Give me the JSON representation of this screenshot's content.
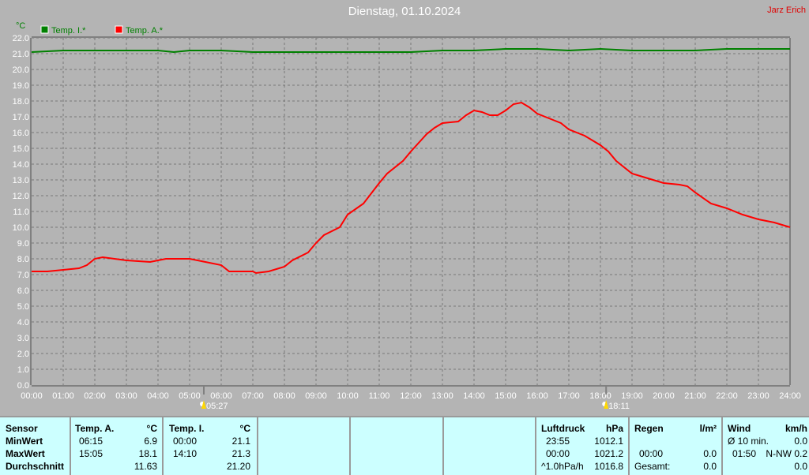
{
  "header": {
    "title": "Dienstag, 01.10.2024",
    "author": "Jarz Erich"
  },
  "chart_data": {
    "type": "line",
    "ylabel": "°C",
    "ylim": [
      0,
      22
    ],
    "xlim": [
      0,
      24
    ],
    "grid": true,
    "legend": "top-left",
    "yticks": [
      "0.0",
      "1.0",
      "2.0",
      "3.0",
      "4.0",
      "5.0",
      "6.0",
      "7.0",
      "8.0",
      "9.0",
      "10.0",
      "11.0",
      "12.0",
      "13.0",
      "14.0",
      "15.0",
      "16.0",
      "17.0",
      "18.0",
      "19.0",
      "20.0",
      "21.0",
      "22.0"
    ],
    "xticks": [
      "00:00",
      "01:00",
      "02:00",
      "03:00",
      "04:00",
      "05:00",
      "06:00",
      "07:00",
      "08:00",
      "09:00",
      "10:00",
      "11:00",
      "12:00",
      "13:00",
      "14:00",
      "15:00",
      "16:00",
      "17:00",
      "18:00",
      "19:00",
      "20:00",
      "21:00",
      "22:00",
      "23:00",
      "24:00"
    ],
    "markers": [
      {
        "label": "05:27",
        "x": 5.45,
        "kind": "sunrise"
      },
      {
        "label": "18:11",
        "x": 18.18,
        "kind": "sunset"
      }
    ],
    "series": [
      {
        "name": "Temp. I.*",
        "color": "#008000",
        "x": [
          0,
          1,
          2,
          3,
          4,
          4.5,
          5,
          6,
          7,
          8,
          9,
          10,
          11,
          12,
          13,
          14,
          15,
          16,
          17,
          18,
          19,
          20,
          21,
          22,
          23,
          24
        ],
        "y": [
          21.1,
          21.2,
          21.2,
          21.2,
          21.2,
          21.1,
          21.2,
          21.2,
          21.1,
          21.1,
          21.1,
          21.1,
          21.1,
          21.1,
          21.2,
          21.2,
          21.3,
          21.3,
          21.2,
          21.3,
          21.2,
          21.2,
          21.2,
          21.3,
          21.3,
          21.3
        ]
      },
      {
        "name": "Temp. A.*",
        "color": "#ff0000",
        "x": [
          0,
          0.5,
          1,
          1.5,
          1.75,
          2,
          2.25,
          3,
          3.75,
          4.25,
          5,
          5.5,
          6,
          6.25,
          7,
          7.1,
          7.5,
          8,
          8.25,
          8.75,
          9,
          9.25,
          9.75,
          10,
          10.5,
          11,
          11.25,
          11.75,
          12,
          12.5,
          12.75,
          13,
          13.5,
          13.75,
          14,
          14.25,
          14.5,
          14.75,
          15,
          15.25,
          15.5,
          15.75,
          16,
          16.5,
          16.75,
          17,
          17.5,
          18,
          18.25,
          18.5,
          19,
          19.5,
          20,
          20.5,
          20.75,
          21,
          21.5,
          22,
          22.5,
          23,
          23.5,
          24
        ],
        "y": [
          7.2,
          7.2,
          7.3,
          7.4,
          7.6,
          8.0,
          8.1,
          7.9,
          7.8,
          8.0,
          8.0,
          7.8,
          7.6,
          7.2,
          7.2,
          7.1,
          7.2,
          7.5,
          7.9,
          8.4,
          9.0,
          9.5,
          10.0,
          10.8,
          11.5,
          12.8,
          13.4,
          14.2,
          14.8,
          15.9,
          16.3,
          16.6,
          16.7,
          17.1,
          17.4,
          17.3,
          17.1,
          17.1,
          17.4,
          17.8,
          17.9,
          17.6,
          17.2,
          16.8,
          16.6,
          16.2,
          15.8,
          15.2,
          14.8,
          14.2,
          13.4,
          13.1,
          12.8,
          12.7,
          12.6,
          12.2,
          11.5,
          11.2,
          10.8,
          10.5,
          10.3,
          10.0
        ]
      }
    ]
  },
  "table": {
    "sensor": {
      "h": "Sensor",
      "r": [
        "MinWert",
        "MaxWert",
        "Durchschnitt"
      ]
    },
    "ta": {
      "h": "Temp. A.",
      "u": "°C",
      "min_t": "06:15",
      "min": "6.9",
      "max_t": "15:05",
      "max": "18.1",
      "avg": "11.63"
    },
    "ti": {
      "h": "Temp. I.",
      "u": "°C",
      "min_t": "00:00",
      "min": "21.1",
      "max_t": "14:10",
      "max": "21.3",
      "avg": "21.20"
    },
    "lp": {
      "h": "Luftdruck",
      "u": "hPa",
      "min_t": "23:55",
      "min": "1012.1",
      "max_t": "00:00",
      "max": "1021.2",
      "trend": "^1.0hPa/h",
      "avg": "1016.8"
    },
    "rain": {
      "h": "Regen",
      "u": "l/m²",
      "max_t": "00:00",
      "max": "0.0",
      "tot_l": "Gesamt:",
      "tot": "0.0"
    },
    "wind": {
      "h": "Wind",
      "u": "km/h",
      "avg_l": "Ø 10 min.",
      "avg": "0.0",
      "max_t": "01:50",
      "max": "N-NW 0.2",
      "x": "0.0"
    }
  }
}
